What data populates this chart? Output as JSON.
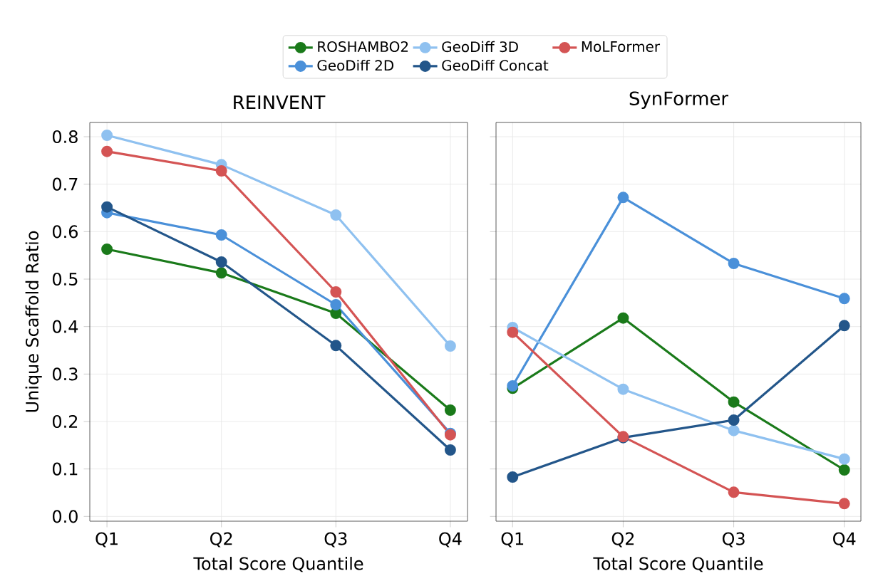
{
  "chart_data": [
    {
      "type": "line",
      "title": "REINVENT",
      "xlabel": "Total Score Quantile",
      "ylabel": "Unique Scaffold Ratio",
      "categories": [
        "Q1",
        "Q2",
        "Q3",
        "Q4"
      ],
      "ylim": [
        -0.01,
        0.83
      ],
      "yticks": [
        {
          "value": 0,
          "label": "0.0"
        },
        0.1,
        0.2,
        0.3,
        0.4,
        0.5,
        0.6,
        0.7,
        0.8
      ],
      "grid": true,
      "marker": "circle",
      "legend": "top",
      "series": [
        {
          "name": "ROSHAMBO2",
          "color": "#1a7a1a",
          "values": [
            0.563,
            0.513,
            0.428,
            0.224
          ]
        },
        {
          "name": "GeoDiff 2D",
          "color": "#4a90d9",
          "values": [
            0.64,
            0.593,
            0.446,
            0.175
          ]
        },
        {
          "name": "GeoDiff 3D",
          "color": "#8fc1f0",
          "values": [
            0.803,
            0.741,
            0.635,
            0.359
          ]
        },
        {
          "name": "GeoDiff Concat",
          "color": "#23568a",
          "values": [
            0.652,
            0.536,
            0.36,
            0.14
          ]
        },
        {
          "name": "MoLFormer",
          "color": "#d45454",
          "values": [
            0.769,
            0.728,
            0.473,
            0.172
          ]
        }
      ]
    },
    {
      "type": "line",
      "title": "SynFormer",
      "xlabel": "Total Score Quantile",
      "categories": [
        "Q1",
        "Q2",
        "Q3",
        "Q4"
      ],
      "ylim": [
        -0.01,
        0.83
      ],
      "yticks": [
        0,
        0.1,
        0.2,
        0.3,
        0.4,
        0.5,
        0.6,
        0.7,
        0.8
      ],
      "grid": true,
      "marker": "circle",
      "tick_labels": "x",
      "series": [
        {
          "color": "#1a7a1a",
          "values": [
            0.27,
            0.418,
            0.241,
            0.098
          ]
        },
        {
          "color": "#4a90d9",
          "values": [
            0.275,
            0.672,
            0.533,
            0.459
          ]
        },
        {
          "color": "#8fc1f0",
          "values": [
            0.398,
            0.268,
            0.181,
            0.121
          ]
        },
        {
          "color": "#23568a",
          "values": [
            0.083,
            0.166,
            0.203,
            0.402
          ]
        },
        {
          "color": "#d45454",
          "values": [
            0.388,
            0.168,
            0.051,
            0.027
          ]
        }
      ]
    }
  ]
}
